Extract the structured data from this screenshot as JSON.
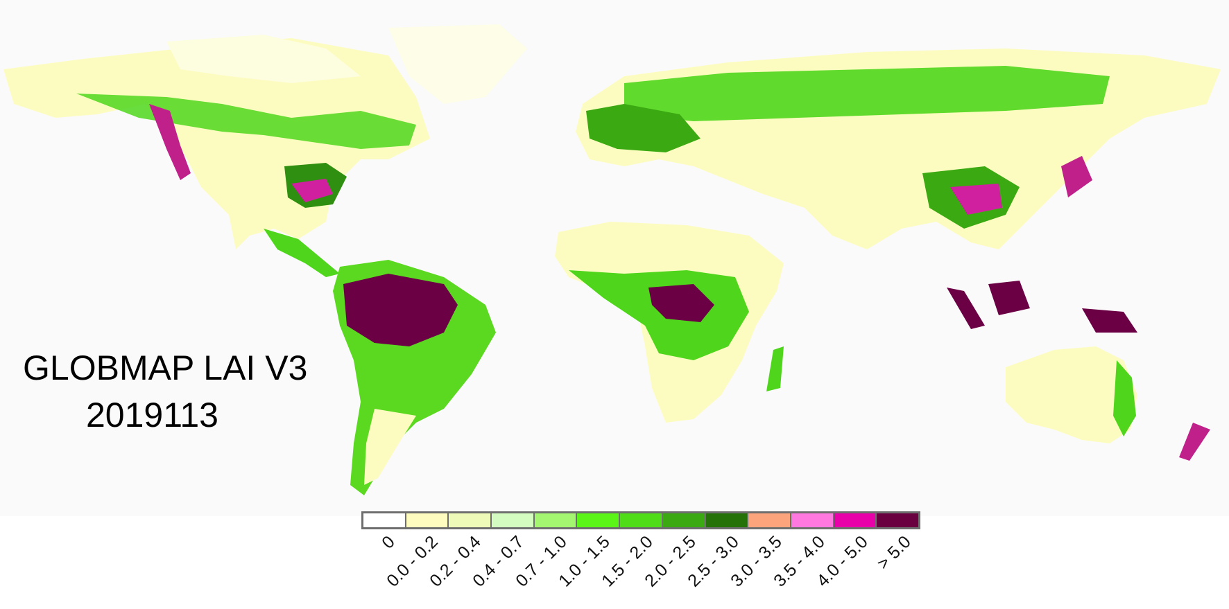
{
  "title": "GLOBMAP LAI V3",
  "subtitle": "2019113",
  "colors": {
    "ocean": "#fafafa",
    "land_sparse": "#fdfcc0",
    "land_low": "#e9f9b0",
    "land_mid": "#a8ef60",
    "land_high": "#4fd61c",
    "forest_dark": "#2e8f10",
    "dense": "#6b0045",
    "pink": "#f070d0"
  },
  "legend": {
    "items": [
      {
        "label": "0",
        "color": "#ffffff"
      },
      {
        "label": "0.0 - 0.2",
        "color": "#fffcbf"
      },
      {
        "label": "0.2 - 0.4",
        "color": "#eefbb8"
      },
      {
        "label": "0.4 - 0.7",
        "color": "#d5fcc0"
      },
      {
        "label": "0.7 - 1.0",
        "color": "#a4f56f"
      },
      {
        "label": "1.0 - 1.5",
        "color": "#5bf518"
      },
      {
        "label": "1.5 - 2.0",
        "color": "#4fdd18"
      },
      {
        "label": "2.0 - 2.5",
        "color": "#3ba912"
      },
      {
        "label": "2.5 - 3.0",
        "color": "#257209"
      },
      {
        "label": "3.0 - 3.5",
        "color": "#fca57c"
      },
      {
        "label": "3.5 - 4.0",
        "color": "#ff78e0"
      },
      {
        "label": "4.0 - 5.0",
        "color": "#e800a8"
      },
      {
        "label": "> 5.0",
        "color": "#6b0040"
      }
    ]
  }
}
